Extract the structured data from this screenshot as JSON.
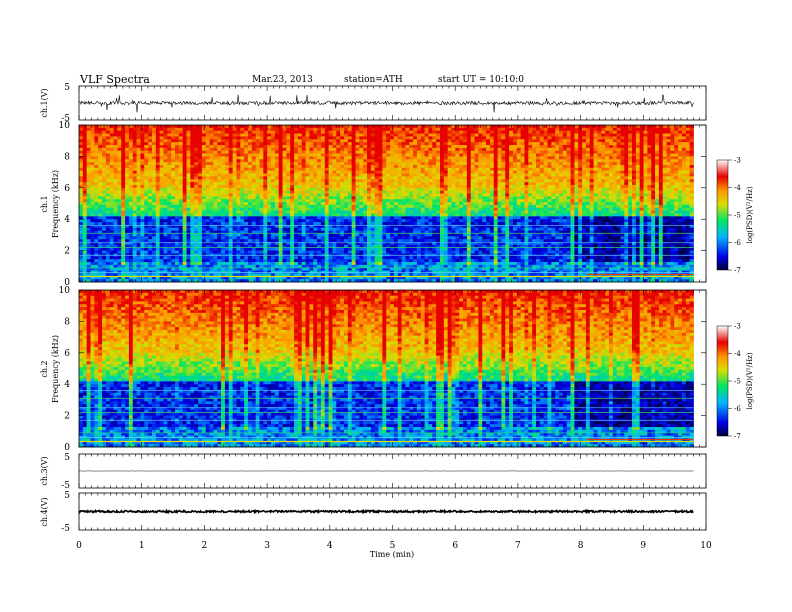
{
  "header": {
    "title": "VLF  Spectra",
    "date": "Mar.23, 2013",
    "station": "station=ATH",
    "start": "start  UT  =    10:10:0"
  },
  "chart_data": [
    {
      "type": "line",
      "panel": "ch1",
      "ylabel": "ch.1(V)",
      "ylim": [
        -5,
        5
      ],
      "yticks": [
        "5",
        "-5"
      ],
      "xlim": [
        0,
        10
      ],
      "data_extent_min": 9.8,
      "baseline": 0,
      "noise_amplitude": 1.0,
      "spike_amplitude": 2.5
    },
    {
      "type": "heatmap",
      "panel": "ch1-spectrogram",
      "ylabel": "ch.1\nFrequency  (kHz)",
      "ylim": [
        0,
        10
      ],
      "yticks": [
        "0",
        "2",
        "4",
        "6",
        "8",
        "10"
      ],
      "xlim": [
        0,
        10
      ],
      "data_extent_min": 9.8,
      "colorbar": {
        "label": "log(PSD)(V²/Hz)",
        "range": [
          -7,
          -3
        ],
        "ticks": [
          "-3",
          "-4",
          "-5",
          "-6",
          "-7"
        ]
      },
      "colormap": [
        "#000050",
        "#0000ff",
        "#00c8ff",
        "#00e060",
        "#e8e800",
        "#ff8000",
        "#e00000",
        "#ffffff"
      ]
    },
    {
      "type": "heatmap",
      "panel": "ch2-spectrogram",
      "ylabel": "ch.2\nFrequency  (kHz)",
      "ylim": [
        0,
        10
      ],
      "yticks": [
        "0",
        "2",
        "4",
        "6",
        "8",
        "10"
      ],
      "xlim": [
        0,
        10
      ],
      "data_extent_min": 9.8,
      "colorbar": {
        "label": "log(PSD)(V²/Hz)",
        "range": [
          -7,
          -3
        ],
        "ticks": [
          "-3",
          "-4",
          "-5",
          "-6",
          "-7"
        ]
      }
    },
    {
      "type": "line",
      "panel": "ch3",
      "ylabel": "ch.3(V)",
      "ylim": [
        -5,
        5
      ],
      "yticks": [
        "5",
        "-5"
      ],
      "xlim": [
        0,
        10
      ],
      "data_extent_min": 9.8,
      "baseline": 0
    },
    {
      "type": "line",
      "panel": "ch4",
      "ylabel": "ch.4(V)",
      "ylim": [
        -5,
        5
      ],
      "yticks": [
        "5",
        "-5"
      ],
      "xlim": [
        0,
        10
      ],
      "data_extent_min": 9.8,
      "baseline": 0
    }
  ],
  "xaxis": {
    "label": "Time  (min)",
    "ticks": [
      "0",
      "1",
      "2",
      "3",
      "4",
      "5",
      "6",
      "7",
      "8",
      "9",
      "10"
    ]
  }
}
